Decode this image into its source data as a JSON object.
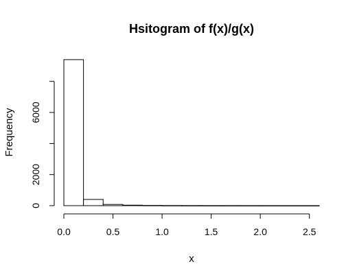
{
  "chart_data": {
    "type": "histogram",
    "title": "Hsitogram of f(x)/g(x)",
    "xlabel": "x",
    "ylabel": "Frequency",
    "bins": [
      {
        "start": 0.0,
        "end": 0.2,
        "value": 9400
      },
      {
        "start": 0.2,
        "end": 0.4,
        "value": 400
      },
      {
        "start": 0.4,
        "end": 0.6,
        "value": 80
      },
      {
        "start": 0.6,
        "end": 0.8,
        "value": 30
      },
      {
        "start": 0.8,
        "end": 1.0,
        "value": 15
      },
      {
        "start": 1.0,
        "end": 1.2,
        "value": 8
      },
      {
        "start": 1.2,
        "end": 1.4,
        "value": 5
      },
      {
        "start": 1.4,
        "end": 1.6,
        "value": 4
      },
      {
        "start": 1.6,
        "end": 1.8,
        "value": 3
      },
      {
        "start": 1.8,
        "end": 2.0,
        "value": 2
      },
      {
        "start": 2.0,
        "end": 2.2,
        "value": 2
      },
      {
        "start": 2.2,
        "end": 2.4,
        "value": 1
      },
      {
        "start": 2.4,
        "end": 2.6,
        "value": 1
      }
    ],
    "x_ticks": [
      {
        "value": 0.0,
        "label": "0.0"
      },
      {
        "value": 0.5,
        "label": "0.5"
      },
      {
        "value": 1.0,
        "label": "1.0"
      },
      {
        "value": 1.5,
        "label": "1.5"
      },
      {
        "value": 2.0,
        "label": "2.0"
      },
      {
        "value": 2.5,
        "label": "2.5"
      }
    ],
    "y_ticks": [
      {
        "value": 0,
        "label": "0"
      },
      {
        "value": 2000,
        "label": "2000"
      },
      {
        "value": 4000,
        "label": ""
      },
      {
        "value": 6000,
        "label": "6000"
      },
      {
        "value": 8000,
        "label": ""
      }
    ],
    "xlim": [
      0.0,
      2.6
    ],
    "ylim": [
      0,
      9400
    ],
    "grid": false,
    "colors": {
      "bar_fill": "#ffffff",
      "bar_stroke": "#000000",
      "axis": "#000000"
    }
  }
}
